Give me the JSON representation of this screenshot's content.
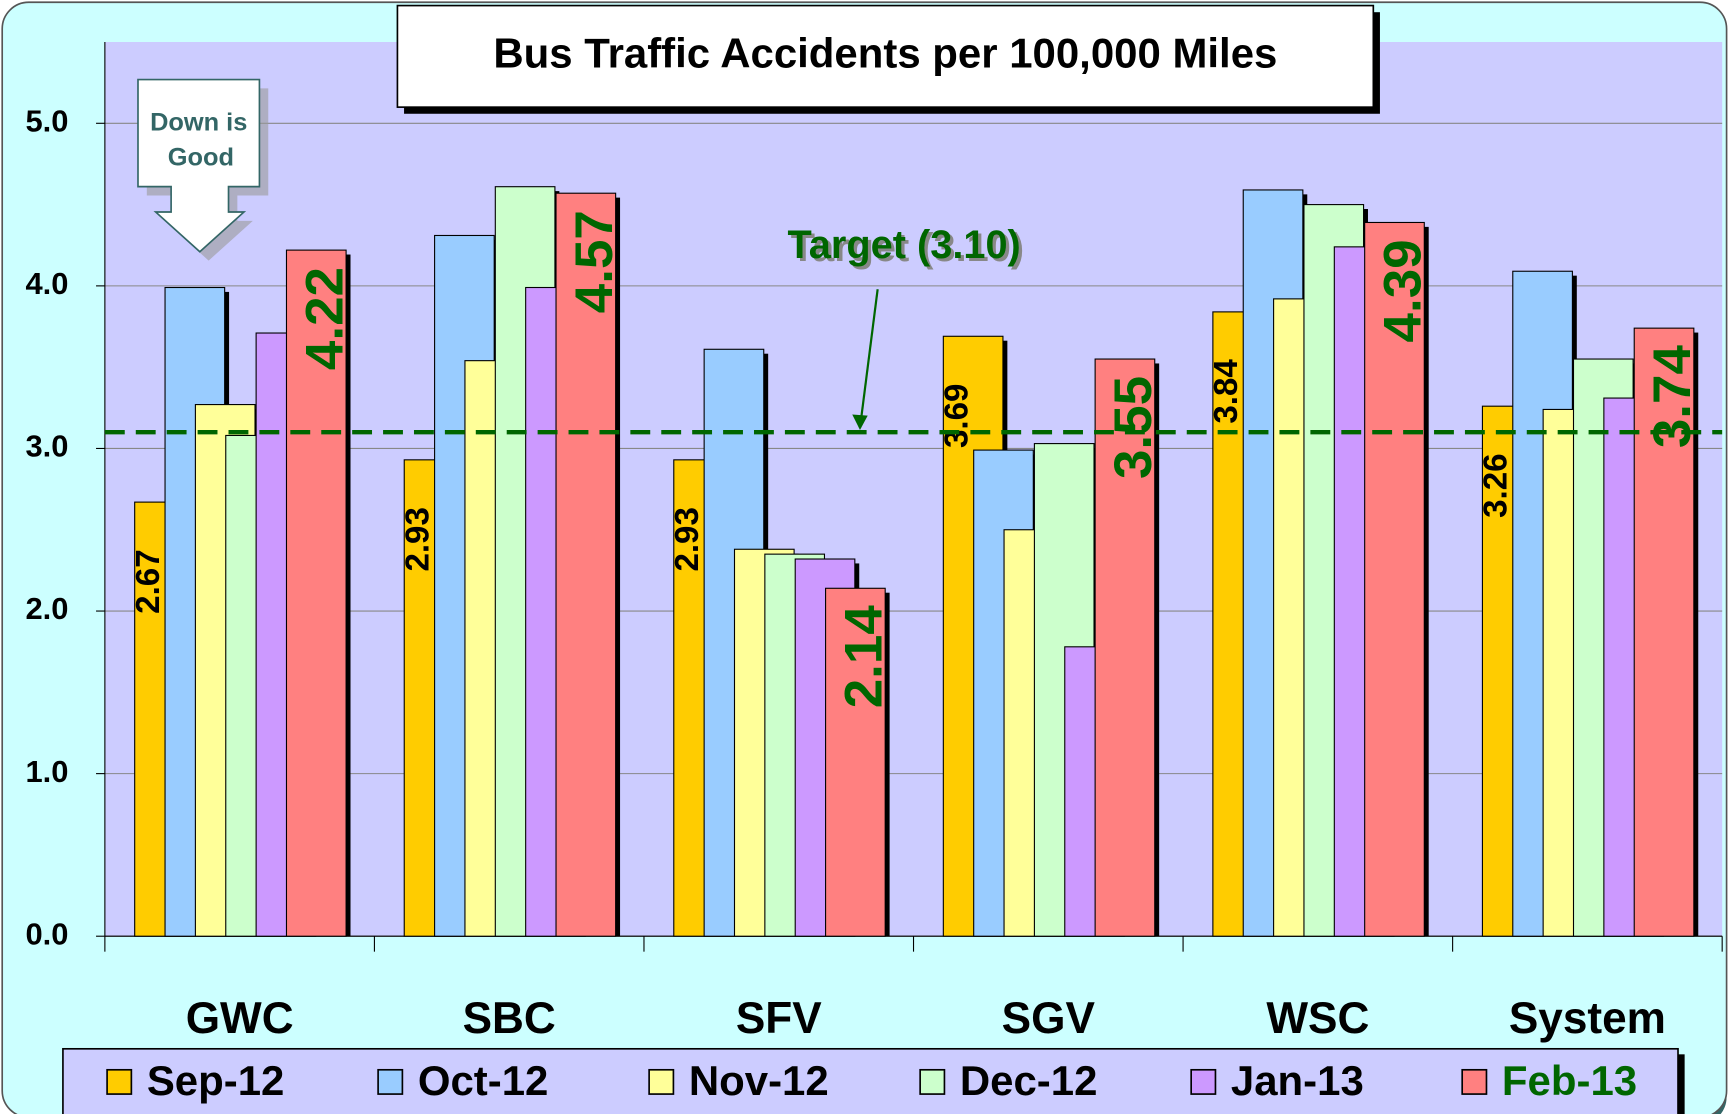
{
  "chart_data": {
    "type": "bar",
    "title": "Bus Traffic Accidents per 100,000 Miles",
    "categories": [
      "GWC",
      "SBC",
      "SFV",
      "SGV",
      "WSC",
      "System"
    ],
    "series": [
      {
        "name": "Sep-12",
        "color": "#ffcc00",
        "values": [
          2.67,
          2.93,
          2.93,
          3.69,
          3.84,
          3.26
        ],
        "value_labels": [
          "2.67",
          "2.93",
          "2.93",
          "3.69",
          "3.84",
          "3.26"
        ]
      },
      {
        "name": "Oct-12",
        "color": "#99ccff",
        "values": [
          3.99,
          4.31,
          3.61,
          2.99,
          4.59,
          4.09
        ]
      },
      {
        "name": "Nov-12",
        "color": "#ffff99",
        "values": [
          3.27,
          3.54,
          2.38,
          2.5,
          3.92,
          3.24
        ]
      },
      {
        "name": "Dec-12",
        "color": "#ccffcc",
        "values": [
          3.08,
          4.61,
          2.35,
          3.03,
          4.5,
          3.55
        ]
      },
      {
        "name": "Jan-13",
        "color": "#cc99ff",
        "values": [
          3.71,
          3.99,
          2.32,
          1.78,
          4.24,
          3.31
        ]
      },
      {
        "name": "Feb-13",
        "color": "#ff8080",
        "values": [
          4.22,
          4.57,
          2.14,
          3.55,
          4.39,
          3.74
        ],
        "value_labels": [
          "4.22",
          "4.57",
          "2.14",
          "3.55",
          "4.39",
          "3.74"
        ]
      }
    ],
    "ylim": [
      0,
      5.5
    ],
    "yticks": [
      {
        "value": 0,
        "label": "0.0"
      },
      {
        "value": 1,
        "label": "1.0"
      },
      {
        "value": 2,
        "label": "2.0"
      },
      {
        "value": 3,
        "label": "3.0"
      },
      {
        "value": 4,
        "label": "4.0"
      },
      {
        "value": 5,
        "label": "5.0"
      }
    ],
    "grid": true,
    "target": 3.1,
    "target_label": "Target (3.10)",
    "target_color": "#006600",
    "down_note": [
      "Down is",
      "Good"
    ]
  }
}
